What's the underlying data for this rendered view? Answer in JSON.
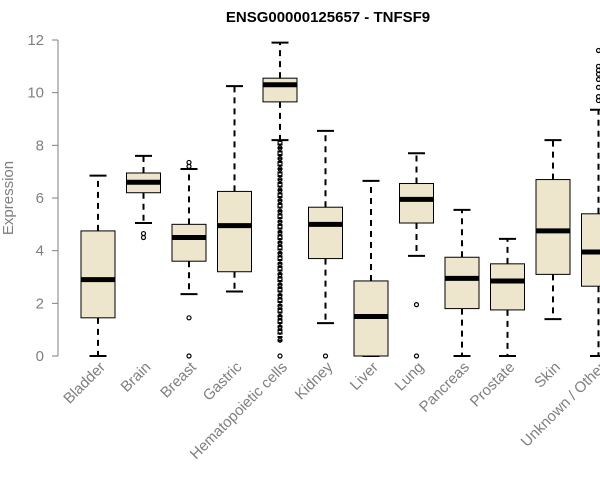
{
  "chart_data": {
    "type": "boxplot",
    "title": "ENSG00000125657 - TNFSF9",
    "xlabel": "",
    "ylabel": "Expression",
    "ylim": [
      0,
      12
    ],
    "yticks": [
      0,
      2,
      4,
      6,
      8,
      10,
      12
    ],
    "colors": {
      "box_fill": "#ede6cc",
      "stroke": "#000000",
      "axis": "#7f7f7f",
      "text": "#7f7f7f"
    },
    "categories": [
      "Bladder",
      "Brain",
      "Breast",
      "Gastric",
      "Hematopoietic cells",
      "Kidney",
      "Liver",
      "Lung",
      "Pancreas",
      "Prostate",
      "Skin",
      "Unknown / Other"
    ],
    "boxes": [
      {
        "category": "Bladder",
        "whisker_low": 0.0,
        "q1": 1.45,
        "median": 2.9,
        "q3": 4.75,
        "whisker_high": 6.85,
        "outliers": []
      },
      {
        "category": "Brain",
        "whisker_low": 5.05,
        "q1": 6.2,
        "median": 6.6,
        "q3": 6.95,
        "whisker_high": 7.6,
        "outliers": [
          4.5,
          4.65
        ]
      },
      {
        "category": "Breast",
        "whisker_low": 2.35,
        "q1": 3.6,
        "median": 4.5,
        "q3": 5.0,
        "whisker_high": 7.1,
        "outliers": [
          7.35,
          7.2,
          1.45,
          0.0
        ]
      },
      {
        "category": "Gastric",
        "whisker_low": 2.45,
        "q1": 3.2,
        "median": 4.95,
        "q3": 6.25,
        "whisker_high": 10.25,
        "outliers": []
      },
      {
        "category": "Hematopoietic cells",
        "whisker_low": 8.2,
        "q1": 9.65,
        "median": 10.3,
        "q3": 10.55,
        "whisker_high": 11.9,
        "outliers": [
          0.0,
          0.6,
          0.9,
          1.1,
          1.3,
          1.5,
          1.7,
          1.9,
          2.1,
          2.3,
          2.5,
          2.7,
          2.9,
          3.1,
          3.3,
          3.5,
          3.7,
          3.9,
          4.1,
          4.3,
          4.5,
          4.7,
          4.9,
          5.1,
          5.3,
          5.5,
          5.7,
          5.9,
          6.1,
          6.3,
          6.5,
          6.7,
          6.9,
          7.1,
          7.3,
          7.5,
          7.7,
          7.9,
          8.1
        ]
      },
      {
        "category": "Kidney",
        "whisker_low": 1.25,
        "q1": 3.7,
        "median": 5.0,
        "q3": 5.65,
        "whisker_high": 8.55,
        "outliers": [
          0.0
        ]
      },
      {
        "category": "Liver",
        "whisker_low": 0.0,
        "q1": 0.0,
        "median": 1.5,
        "q3": 2.85,
        "whisker_high": 6.65,
        "outliers": []
      },
      {
        "category": "Lung",
        "whisker_low": 3.8,
        "q1": 5.05,
        "median": 5.95,
        "q3": 6.55,
        "whisker_high": 7.7,
        "outliers": [
          1.95,
          0.0
        ]
      },
      {
        "category": "Pancreas",
        "whisker_low": 0.0,
        "q1": 1.8,
        "median": 2.95,
        "q3": 3.75,
        "whisker_high": 5.55,
        "outliers": []
      },
      {
        "category": "Prostate",
        "whisker_low": 0.0,
        "q1": 1.75,
        "median": 2.85,
        "q3": 3.5,
        "whisker_high": 4.45,
        "outliers": []
      },
      {
        "category": "Skin",
        "whisker_low": 1.4,
        "q1": 3.1,
        "median": 4.75,
        "q3": 6.7,
        "whisker_high": 8.2,
        "outliers": []
      },
      {
        "category": "Unknown / Other",
        "whisker_low": 0.0,
        "q1": 2.65,
        "median": 3.95,
        "q3": 5.4,
        "whisker_high": 9.35,
        "outliers": [
          9.7,
          9.85,
          10.2,
          10.5,
          10.7,
          10.85,
          11.0,
          11.6
        ]
      }
    ]
  }
}
